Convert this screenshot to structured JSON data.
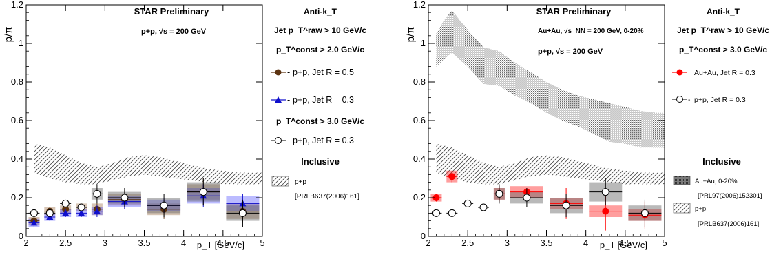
{
  "chart_data": [
    {
      "type": "scatter",
      "title": "STAR Preliminary",
      "collision": "p+p,  √s = 200 GeV",
      "xlabel": "p_T [GeV/c]",
      "ylabel": "p/π",
      "xlim": [
        2,
        5
      ],
      "ylim": [
        0,
        1.2
      ],
      "x_ticks": [
        "2",
        "2.5",
        "3",
        "3.5",
        "4",
        "4.5",
        "5"
      ],
      "y_ticks": [
        "0",
        "0.2",
        "0.4",
        "0.6",
        "0.8",
        "1",
        "1.2"
      ],
      "legend": {
        "algorithm": "Anti-k_T",
        "jet_cut": "Jet p_T^raw > 10 GeV/c",
        "const_cut_1": "p_T^const > 2.0 GeV/c",
        "const_cut_2": "p_T^const > 3.0 GeV/c",
        "inclusive_header": "Inclusive",
        "band_label": "p+p",
        "band_ref": "[PRLB637(2006)161]"
      },
      "series": [
        {
          "name": "p+p, Jet R = 0.5",
          "marker": "filled-circle",
          "color": "#5c3311",
          "x": [
            2.1,
            2.3,
            2.5,
            2.7,
            2.9,
            3.25,
            3.75,
            4.25,
            4.75
          ],
          "y": [
            0.08,
            0.13,
            0.14,
            0.15,
            0.14,
            0.19,
            0.14,
            0.23,
            0.13
          ],
          "err": [
            0.02,
            0.02,
            0.02,
            0.02,
            0.03,
            0.05,
            0.05,
            0.07,
            0.06
          ],
          "sys": [
            0.02,
            0.02,
            0.02,
            0.02,
            0.03,
            0.03,
            0.03,
            0.04,
            0.04
          ]
        },
        {
          "name": "p+p, Jet R = 0.3",
          "marker": "filled-triangle",
          "color": "#1010cc",
          "x": [
            2.1,
            2.3,
            2.5,
            2.7,
            2.9,
            3.25,
            3.75,
            4.25,
            4.75
          ],
          "y": [
            0.07,
            0.1,
            0.12,
            0.12,
            0.13,
            0.18,
            0.16,
            0.21,
            0.17
          ],
          "err": [
            0.02,
            0.02,
            0.02,
            0.02,
            0.03,
            0.04,
            0.04,
            0.06,
            0.05
          ],
          "sys": [
            0.02,
            0.02,
            0.02,
            0.02,
            0.02,
            0.03,
            0.03,
            0.04,
            0.04
          ]
        },
        {
          "name": "p+p, Jet R = 0.3",
          "marker": "open-circle",
          "color": "#000000",
          "x": [
            2.1,
            2.3,
            2.5,
            2.7,
            2.9,
            3.25,
            3.75,
            4.25,
            4.75
          ],
          "y": [
            0.12,
            0.12,
            0.17,
            0.15,
            0.22,
            0.2,
            0.16,
            0.23,
            0.12
          ],
          "err": [
            0.01,
            0.01,
            0.01,
            0.01,
            0.05,
            0.05,
            0.06,
            0.07,
            0.07
          ],
          "sys": [
            0.0,
            0.0,
            0.0,
            0.0,
            0.03,
            0.03,
            0.04,
            0.05,
            0.04
          ]
        }
      ],
      "bands": [
        {
          "name": "p+p",
          "fill": "hatch",
          "x": [
            2.1,
            2.3,
            2.5,
            2.7,
            2.9,
            3.1,
            3.3,
            3.5,
            3.7,
            3.9,
            4.1,
            4.3,
            4.5,
            4.7,
            4.9,
            5.0
          ],
          "upper": [
            0.48,
            0.46,
            0.42,
            0.38,
            0.36,
            0.38,
            0.41,
            0.42,
            0.41,
            0.39,
            0.37,
            0.35,
            0.34,
            0.33,
            0.33,
            0.33
          ],
          "lower": [
            0.33,
            0.3,
            0.28,
            0.27,
            0.27,
            0.29,
            0.31,
            0.32,
            0.31,
            0.3,
            0.29,
            0.28,
            0.27,
            0.27,
            0.27,
            0.27
          ]
        }
      ]
    },
    {
      "type": "scatter",
      "title": "STAR Preliminary",
      "collision": "Au+Au,  √s_NN = 200 GeV, 0-20%",
      "collision_2": "p+p,  √s = 200 GeV",
      "xlabel": "p_T [GeV/c]",
      "ylabel": "p/π",
      "xlim": [
        2,
        5
      ],
      "ylim": [
        0,
        1.2
      ],
      "x_ticks": [
        "2",
        "2.5",
        "3",
        "3.5",
        "4",
        "4.5",
        "5"
      ],
      "y_ticks": [
        "0",
        "0.2",
        "0.4",
        "0.6",
        "0.8",
        "1",
        "1.2"
      ],
      "legend": {
        "algorithm": "Anti-k_T",
        "jet_cut": "Jet p_T^raw > 10 GeV/c",
        "const_cut": "p_T^const > 3.0 GeV/c",
        "inclusive_header": "Inclusive",
        "band_auau_label": "Au+Au, 0-20%",
        "band_auau_ref": "[PRL97(2006)152301]",
        "band_pp_label": "p+p",
        "band_pp_ref": "[PRLB637(2006)161]"
      },
      "series": [
        {
          "name": "Au+Au, Jet R = 0.3",
          "marker": "filled-circle",
          "color": "#ff0000",
          "x": [
            2.1,
            2.3,
            2.9,
            3.25,
            3.75,
            4.25,
            4.75
          ],
          "y": [
            0.2,
            0.31,
            0.22,
            0.23,
            0.17,
            0.13,
            0.11
          ],
          "err": [
            0.02,
            0.03,
            0.04,
            0.02,
            0.08,
            0.1,
            0.07
          ],
          "sys": [
            0.02,
            0.03,
            0.03,
            0.03,
            0.03,
            0.03,
            0.03
          ]
        },
        {
          "name": "p+p, Jet R = 0.3",
          "marker": "open-circle",
          "color": "#000000",
          "x": [
            2.1,
            2.3,
            2.5,
            2.7,
            2.9,
            3.25,
            3.75,
            4.25,
            4.75
          ],
          "y": [
            0.12,
            0.12,
            0.17,
            0.15,
            0.22,
            0.2,
            0.16,
            0.23,
            0.12
          ],
          "err": [
            0.01,
            0.01,
            0.01,
            0.01,
            0.05,
            0.05,
            0.06,
            0.07,
            0.07
          ],
          "sys": [
            0.0,
            0.0,
            0.0,
            0.0,
            0.03,
            0.03,
            0.04,
            0.05,
            0.04
          ]
        }
      ],
      "bands": [
        {
          "name": "Au+Au, 0-20%",
          "fill": "dense-dots",
          "x": [
            2.1,
            2.2,
            2.3,
            2.5,
            2.7,
            2.9,
            3.1,
            3.3,
            3.5,
            3.7,
            3.9,
            4.1,
            4.3,
            4.5,
            4.7,
            4.9,
            5.0
          ],
          "upper": [
            1.05,
            1.12,
            1.17,
            1.07,
            0.98,
            0.96,
            0.9,
            0.85,
            0.8,
            0.76,
            0.73,
            0.71,
            0.69,
            0.67,
            0.65,
            0.64,
            0.64
          ],
          "lower": [
            0.88,
            0.92,
            0.95,
            0.88,
            0.79,
            0.78,
            0.73,
            0.69,
            0.64,
            0.6,
            0.57,
            0.53,
            0.49,
            0.48,
            0.46,
            0.46,
            0.46
          ]
        },
        {
          "name": "p+p",
          "fill": "hatch",
          "x": [
            2.1,
            2.3,
            2.5,
            2.7,
            2.9,
            3.1,
            3.3,
            3.5,
            3.7,
            3.9,
            4.1,
            4.3,
            4.5,
            4.7,
            4.9,
            5.0
          ],
          "upper": [
            0.48,
            0.46,
            0.42,
            0.38,
            0.36,
            0.38,
            0.41,
            0.42,
            0.41,
            0.39,
            0.37,
            0.35,
            0.34,
            0.33,
            0.33,
            0.33
          ],
          "lower": [
            0.33,
            0.3,
            0.28,
            0.27,
            0.27,
            0.29,
            0.31,
            0.32,
            0.31,
            0.3,
            0.29,
            0.28,
            0.27,
            0.27,
            0.27,
            0.27
          ]
        }
      ]
    }
  ]
}
